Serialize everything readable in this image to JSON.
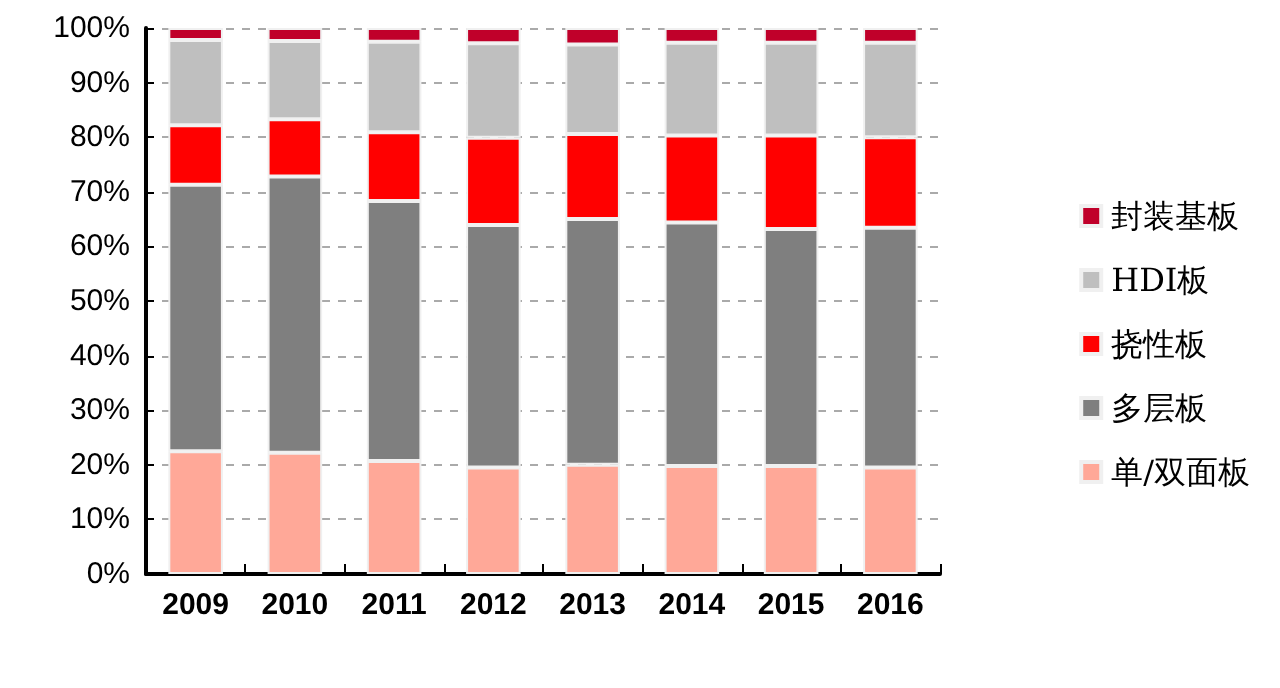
{
  "chart_data": {
    "type": "bar",
    "stacked": true,
    "categories": [
      "2009",
      "2010",
      "2011",
      "2012",
      "2013",
      "2014",
      "2015",
      "2016"
    ],
    "series": [
      {
        "name": "单/双面板",
        "color": "#ffa898",
        "values": [
          22.5,
          22.2,
          20.7,
          19.5,
          20.0,
          19.8,
          19.8,
          19.5
        ]
      },
      {
        "name": "多层板",
        "color": "#7f7f7f",
        "values": [
          48.8,
          50.6,
          47.6,
          44.4,
          45.0,
          44.6,
          43.4,
          43.9
        ]
      },
      {
        "name": "挠性板",
        "color": "#ff0000",
        "values": [
          10.9,
          10.5,
          12.6,
          16.0,
          15.6,
          15.9,
          17.1,
          16.6
        ]
      },
      {
        "name": "HDI板",
        "color": "#bfbfbf",
        "values": [
          15.6,
          14.3,
          16.6,
          17.3,
          16.4,
          17.0,
          17.0,
          17.3
        ]
      },
      {
        "name": "封装基板",
        "color": "#c0002a",
        "values": [
          2.2,
          2.4,
          2.5,
          2.8,
          3.0,
          2.7,
          2.7,
          2.7
        ]
      }
    ],
    "ylim": [
      0,
      100
    ],
    "yticks": [
      {
        "value": 0,
        "label": "0%"
      },
      {
        "value": 10,
        "label": "10%"
      },
      {
        "value": 20,
        "label": "20%"
      },
      {
        "value": 30,
        "label": "30%"
      },
      {
        "value": 40,
        "label": "40%"
      },
      {
        "value": 50,
        "label": "50%"
      },
      {
        "value": 60,
        "label": "60%"
      },
      {
        "value": 70,
        "label": "70%"
      },
      {
        "value": 80,
        "label": "80%"
      },
      {
        "value": 90,
        "label": "90%"
      },
      {
        "value": 100,
        "label": "100%"
      }
    ],
    "grid": "y",
    "legend": "right"
  }
}
